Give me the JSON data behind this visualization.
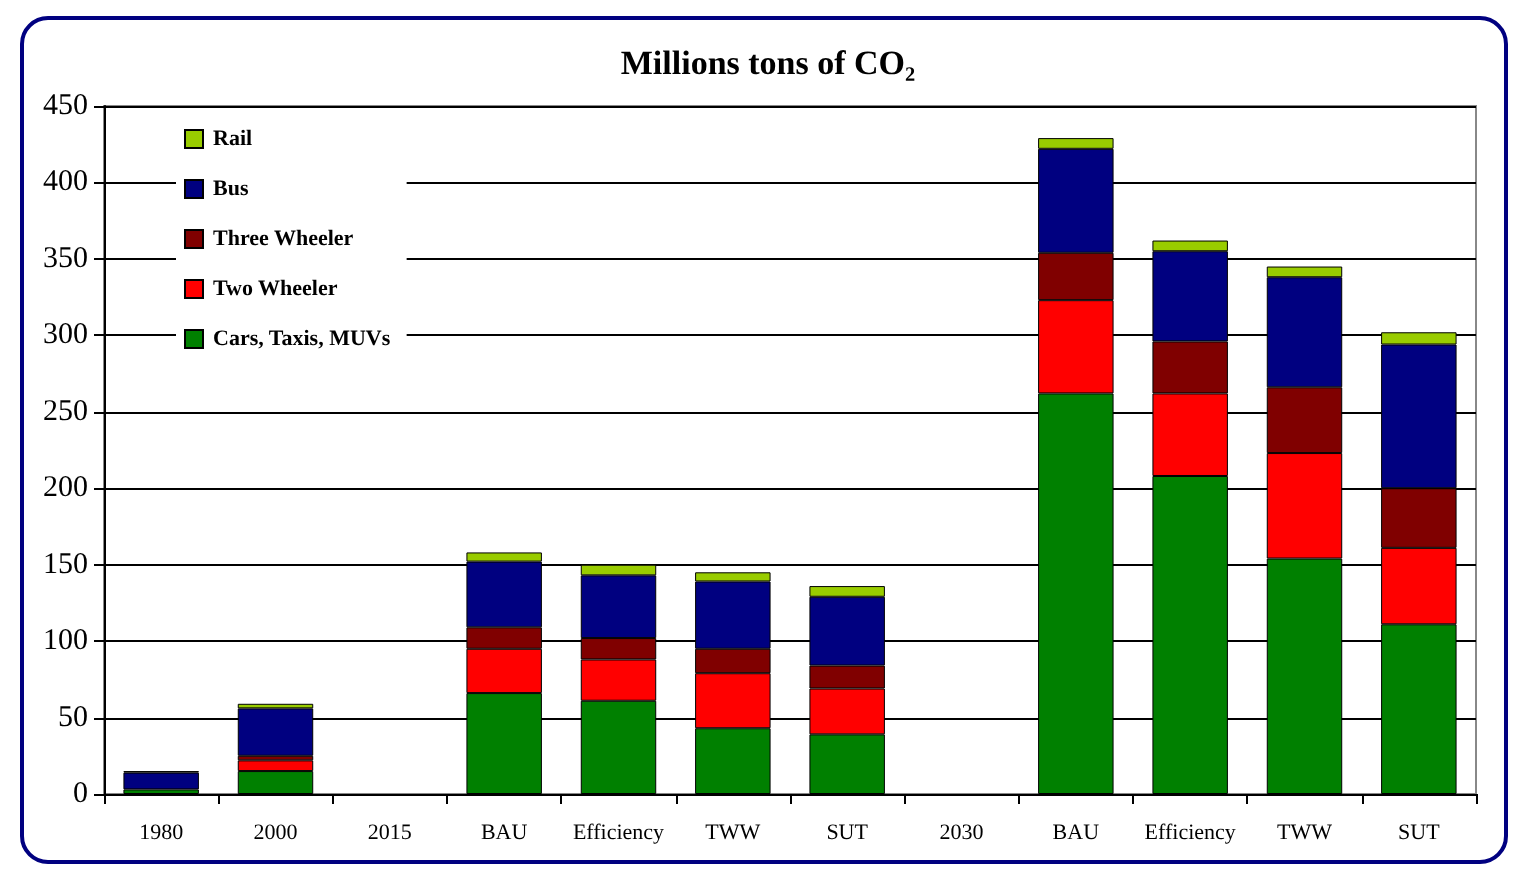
{
  "chart_data": {
    "type": "bar",
    "title": "Millions tons of CO₂",
    "stacked": true,
    "grid": "y",
    "legend": "top left",
    "categories": [
      "1980",
      "2000",
      "2015",
      "BAU",
      "Efficiency",
      "TWW",
      "SUT",
      "2030",
      "BAU",
      "Efficiency",
      "TWW",
      "SUT"
    ],
    "ylim": [
      0,
      450
    ],
    "yticks": [
      0,
      50,
      100,
      150,
      200,
      250,
      300,
      350,
      400,
      450
    ],
    "series": [
      {
        "name": "Cars, Taxis, MUVs",
        "color": "#008000",
        "values": [
          3,
          15,
          null,
          66,
          61,
          43,
          39,
          null,
          262,
          208,
          154,
          111
        ]
      },
      {
        "name": "Two Wheeler",
        "color": "#ff0000",
        "values": [
          null,
          7,
          null,
          29,
          27,
          36,
          30,
          null,
          61,
          54,
          69,
          50
        ]
      },
      {
        "name": "Three Wheeler",
        "color": "#800000",
        "values": [
          null,
          3,
          null,
          14,
          14,
          16,
          15,
          null,
          31,
          34,
          43,
          39
        ]
      },
      {
        "name": "Bus",
        "color": "#000080",
        "values": [
          11,
          31,
          null,
          43,
          41,
          44,
          45,
          null,
          68,
          59,
          72,
          94
        ]
      },
      {
        "name": "Rail",
        "color": "#99cc00",
        "values": [
          1,
          3,
          null,
          6,
          7,
          6,
          7,
          null,
          7,
          7,
          7,
          8
        ]
      }
    ]
  }
}
